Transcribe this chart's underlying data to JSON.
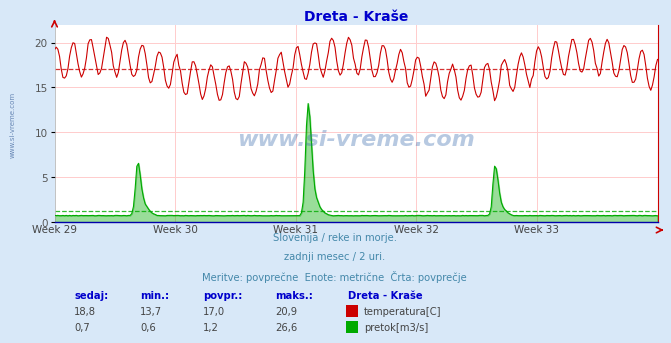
{
  "title": "Dreta - Kraše",
  "title_color": "#0000cc",
  "bg_color": "#d8e8f8",
  "plot_bg_color": "#ffffff",
  "grid_color": "#ffcccc",
  "x_labels": [
    "Week 29",
    "Week 30",
    "Week 31",
    "Week 32",
    "Week 33"
  ],
  "x_label_color": "#444444",
  "ylim": [
    0,
    22
  ],
  "yticks": [
    0,
    5,
    10,
    15,
    20
  ],
  "n_points": 360,
  "temp_color": "#cc0000",
  "flow_color": "#00aa00",
  "avg_temp_color": "#cc0000",
  "avg_flow_color": "#00aa00",
  "avg_temp": 17.0,
  "avg_flow": 1.2,
  "temp_min": 13.7,
  "temp_max": 20.9,
  "flow_min": 0.6,
  "flow_max": 26.6,
  "subtitle1": "Slovenija / reke in morje.",
  "subtitle2": "zadnji mesec / 2 uri.",
  "subtitle3": "Meritve: povprečne  Enote: metrične  Črta: povprečje",
  "subtitle_color": "#4488aa",
  "table_header_color": "#0000cc",
  "table_value_color": "#444444",
  "watermark": "www.si-vreme.com",
  "watermark_color": "#3366aa",
  "left_label": "www.si-vreme.com",
  "left_label_color": "#5577aa"
}
